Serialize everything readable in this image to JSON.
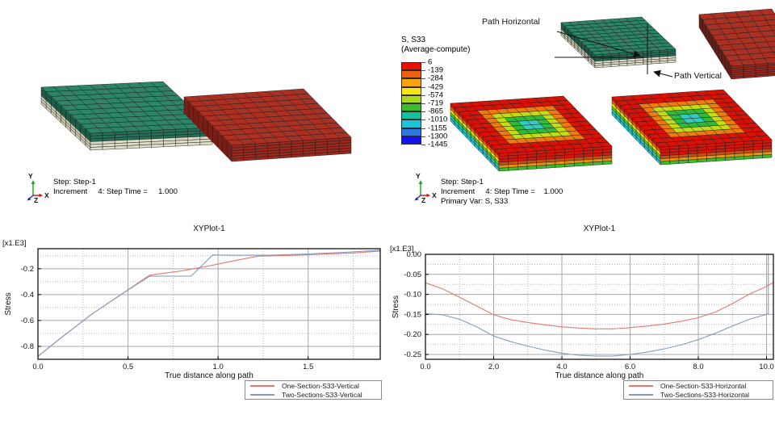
{
  "viewports": {
    "top_left": {
      "triad": {
        "x": "X",
        "y": "Y",
        "z": "Z"
      },
      "state_block": {
        "lines": [
          "Step: Step-1",
          "Increment     4: Step Time =     1.000"
        ]
      }
    },
    "top_right": {
      "spectrum_legend": {
        "title": "S, S33",
        "subtitle": "(Average-compute)",
        "boundary_values": [
          "6",
          "-139",
          "-284",
          "-429",
          "-574",
          "-719",
          "-865",
          "-1010",
          "-1155",
          "-1300",
          "-1445"
        ]
      },
      "annotations": {
        "path_horizontal": "Path Horizontal",
        "path_vertical": "Path Vertical"
      },
      "triad": {
        "x": "X",
        "y": "Y",
        "z": "Z"
      },
      "state_block": {
        "lines": [
          "Step: Step-1",
          "Increment     4: Step Time =    1.000",
          "Primary Var: S, S33"
        ]
      }
    }
  },
  "chart_data": [
    {
      "type": "line",
      "title": "XYPlot-1",
      "xlabel": "True distance along path",
      "ylabel": "Stress",
      "unit_multiplier": "[x1.E3]",
      "xlim": [
        0,
        1.9
      ],
      "ylim": [
        -0.9,
        -0.045
      ],
      "xticks": [
        0,
        0.5,
        1.0,
        1.5
      ],
      "xtick_labels": [
        "0.0",
        "0.5",
        "1.0",
        "1.5"
      ],
      "yticks": [
        -0.2,
        -0.4,
        -0.6,
        -0.8
      ],
      "ytick_labels": [
        "-0.2",
        "-0.4",
        "-0.6",
        "-0.8"
      ],
      "xminor": [
        0.25,
        0.75,
        1.25,
        1.75
      ],
      "yminor": [
        -0.1,
        -0.3,
        -0.5,
        -0.7
      ],
      "grid": true,
      "legend_position": "below-right",
      "series": [
        {
          "name": "One-Section-S33-Vertical",
          "color": "#e4796f",
          "points": [
            [
              0,
              -0.877
            ],
            [
              0.15,
              -0.71
            ],
            [
              0.3,
              -0.55
            ],
            [
              0.45,
              -0.41
            ],
            [
              0.55,
              -0.315
            ],
            [
              0.62,
              -0.25
            ],
            [
              0.8,
              -0.216
            ],
            [
              0.95,
              -0.178
            ],
            [
              1.1,
              -0.135
            ],
            [
              1.22,
              -0.103
            ],
            [
              1.4,
              -0.097
            ],
            [
              1.6,
              -0.086
            ],
            [
              1.75,
              -0.078
            ],
            [
              1.9,
              -0.063
            ]
          ]
        },
        {
          "name": "Two-Sections-S33-Vertical",
          "color": "#849cc0",
          "points": [
            [
              0,
              -0.877
            ],
            [
              0.15,
              -0.71
            ],
            [
              0.3,
              -0.55
            ],
            [
              0.45,
              -0.41
            ],
            [
              0.55,
              -0.32
            ],
            [
              0.62,
              -0.258
            ],
            [
              0.85,
              -0.257
            ],
            [
              0.97,
              -0.093
            ],
            [
              1.1,
              -0.096
            ],
            [
              1.3,
              -0.094
            ],
            [
              1.5,
              -0.086
            ],
            [
              1.7,
              -0.073
            ],
            [
              1.9,
              -0.057
            ]
          ]
        }
      ]
    },
    {
      "type": "line",
      "title": "XYPlot-1",
      "xlabel": "True distance along path",
      "ylabel": "Stress",
      "unit_multiplier": "[x1.E3]",
      "xlim": [
        0,
        10.2
      ],
      "ylim": [
        -0.262,
        0
      ],
      "xticks": [
        0,
        2,
        4,
        6,
        8,
        10
      ],
      "xtick_labels": [
        "0.0",
        "2.0",
        "4.0",
        "6.0",
        "8.0",
        "10.0"
      ],
      "yticks": [
        0,
        -0.05,
        -0.1,
        -0.15,
        -0.2,
        -0.25
      ],
      "ytick_labels": [
        "0.00",
        "-0.05",
        "-0.10",
        "-0.15",
        "-0.20",
        "-0.25"
      ],
      "xminor": [
        1,
        3,
        5,
        7,
        9
      ],
      "yminor": [
        -0.025,
        -0.075,
        -0.125,
        -0.175,
        -0.225
      ],
      "grid": true,
      "legend_position": "below-right",
      "series": [
        {
          "name": "One-Section-S33-Horizontal",
          "color": "#e4796f",
          "points": [
            [
              0,
              -0.071
            ],
            [
              0.5,
              -0.086
            ],
            [
              1,
              -0.107
            ],
            [
              1.5,
              -0.129
            ],
            [
              2,
              -0.151
            ],
            [
              2.5,
              -0.163
            ],
            [
              3,
              -0.17
            ],
            [
              3.5,
              -0.176
            ],
            [
              4,
              -0.181
            ],
            [
              4.5,
              -0.184
            ],
            [
              5,
              -0.186
            ],
            [
              5.5,
              -0.186
            ],
            [
              6,
              -0.183
            ],
            [
              6.5,
              -0.179
            ],
            [
              7,
              -0.174
            ],
            [
              7.5,
              -0.167
            ],
            [
              8,
              -0.158
            ],
            [
              8.5,
              -0.144
            ],
            [
              9,
              -0.123
            ],
            [
              9.5,
              -0.099
            ],
            [
              10,
              -0.08
            ],
            [
              10.2,
              -0.07
            ]
          ]
        },
        {
          "name": "Two-Sections-S33-Horizontal",
          "color": "#849cc0",
          "points": [
            [
              0,
              -0.148
            ],
            [
              0.5,
              -0.151
            ],
            [
              1,
              -0.162
            ],
            [
              1.5,
              -0.181
            ],
            [
              2,
              -0.204
            ],
            [
              2.5,
              -0.218
            ],
            [
              3,
              -0.229
            ],
            [
              3.5,
              -0.239
            ],
            [
              4,
              -0.247
            ],
            [
              4.5,
              -0.252
            ],
            [
              5,
              -0.254
            ],
            [
              5.5,
              -0.254
            ],
            [
              6,
              -0.25
            ],
            [
              6.5,
              -0.244
            ],
            [
              7,
              -0.236
            ],
            [
              7.5,
              -0.226
            ],
            [
              8,
              -0.213
            ],
            [
              8.5,
              -0.197
            ],
            [
              9,
              -0.179
            ],
            [
              9.5,
              -0.162
            ],
            [
              10,
              -0.15
            ],
            [
              10.05,
              -0.148
            ],
            [
              10.05,
              0
            ]
          ]
        }
      ]
    }
  ],
  "colors": {
    "curve_red": "#e4796f",
    "curve_blue": "#849cc0",
    "grid_major": "#a8a8a8",
    "grid_minor": "#b4b4b4",
    "axis": "#000000",
    "mesh_line": "#1a1a1a",
    "mesh_green_top": "#2d8467",
    "mesh_green_front": "#256f56",
    "mesh_green_side": "#1e654e",
    "mesh_cream_front": "#dedbc6",
    "mesh_cream_side": "#cfccb4",
    "mesh_red_top": "#a93124",
    "mesh_red_front": "#9a281c",
    "mesh_red_side": "#882016",
    "spectrum_bands": [
      "#e81007",
      "#f06010",
      "#f8a20c",
      "#f4e710",
      "#aada18",
      "#3cbb2b",
      "#15c19a",
      "#1cc3dd",
      "#2a78e2",
      "#1313ef"
    ],
    "contour_top_rings": [
      "#d91207",
      "#d91207",
      "#ef7a0e",
      "#c4dc14",
      "#2fbb3a",
      "#35cbc0"
    ],
    "contour_front_rows": [
      "#d6150a",
      "#d6150a",
      "#d6150a",
      "#c44f12",
      "#e8930f",
      "#3cbb2b"
    ],
    "contour_side_rows": [
      "#e11207",
      "#f06010",
      "#f4e710",
      "#56c82a",
      "#2ec8b0",
      "#1cc3dd"
    ]
  }
}
